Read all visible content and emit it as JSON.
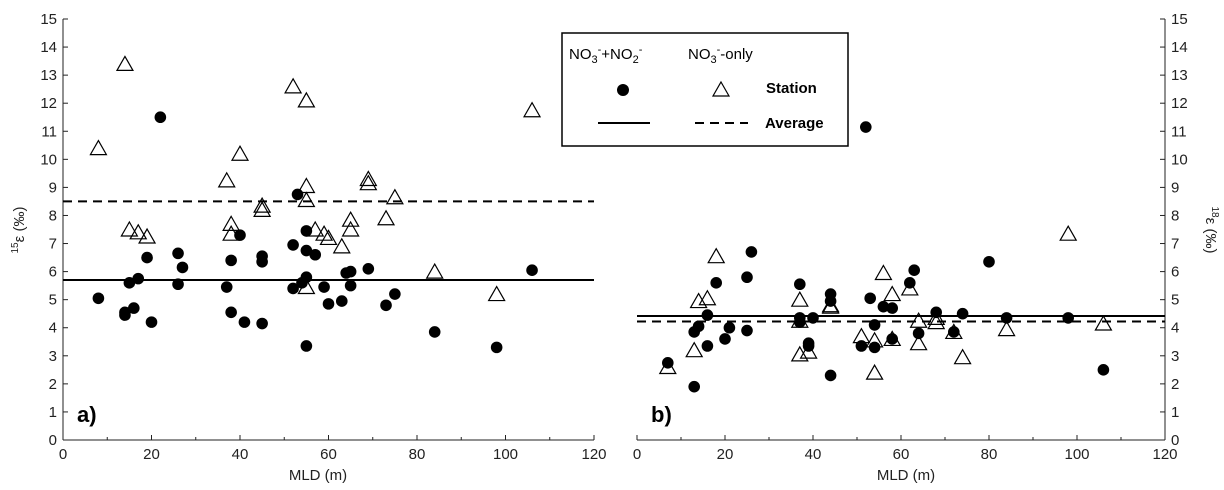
{
  "colors": {
    "ink": "#000000",
    "axis": "#222222",
    "background": "#ffffff"
  },
  "legend": {
    "title_a": "NO3-+NO2-",
    "title_b": "NO3--only",
    "station_label": "Station",
    "average_label": "Average",
    "marker_a": "filled-circle",
    "marker_b": "open-triangle",
    "line_a": "solid",
    "line_b": "dashed"
  },
  "chart_data": [
    {
      "type": "scatter",
      "panel_label": "a)",
      "xlabel": "MLD (m)",
      "ylabel": "15ε (‰)",
      "xlim": [
        0,
        120
      ],
      "ylim": [
        0,
        15
      ],
      "xticks": [
        "0",
        "20",
        "40",
        "60",
        "80",
        "100",
        "120"
      ],
      "yticks": [
        "0",
        "1",
        "2",
        "3",
        "4",
        "5",
        "6",
        "7",
        "8",
        "9",
        "10",
        "11",
        "12",
        "13",
        "14",
        "15"
      ],
      "grid": false,
      "series": [
        {
          "name": "NO3-+NO2-",
          "marker": "filled-circle",
          "points": [
            [
              8,
              5.05
            ],
            [
              14,
              4.55
            ],
            [
              14,
              4.45
            ],
            [
              15,
              5.6
            ],
            [
              16,
              4.7
            ],
            [
              17,
              5.75
            ],
            [
              19,
              6.5
            ],
            [
              20,
              4.2
            ],
            [
              22,
              11.5
            ],
            [
              26,
              6.65
            ],
            [
              26,
              5.55
            ],
            [
              27,
              6.15
            ],
            [
              37,
              5.45
            ],
            [
              38,
              6.4
            ],
            [
              38,
              4.55
            ],
            [
              40,
              7.3
            ],
            [
              41,
              4.2
            ],
            [
              45,
              6.55
            ],
            [
              45,
              6.35
            ],
            [
              45,
              4.15
            ],
            [
              52,
              6.95
            ],
            [
              52,
              5.4
            ],
            [
              53,
              8.75
            ],
            [
              54,
              5.6
            ],
            [
              55,
              7.45
            ],
            [
              55,
              6.75
            ],
            [
              55,
              5.8
            ],
            [
              55,
              3.35
            ],
            [
              57,
              6.6
            ],
            [
              59,
              5.45
            ],
            [
              60,
              4.85
            ],
            [
              63,
              4.95
            ],
            [
              64,
              5.95
            ],
            [
              65,
              6.0
            ],
            [
              65,
              5.5
            ],
            [
              69,
              6.1
            ],
            [
              73,
              4.8
            ],
            [
              75,
              5.2
            ],
            [
              84,
              3.85
            ],
            [
              98,
              3.3
            ],
            [
              106,
              6.05
            ]
          ]
        },
        {
          "name": "NO3--only",
          "marker": "open-triangle",
          "points": [
            [
              8,
              10.4
            ],
            [
              14,
              13.4
            ],
            [
              15,
              7.5
            ],
            [
              17,
              7.4
            ],
            [
              19,
              7.25
            ],
            [
              37,
              9.25
            ],
            [
              38,
              7.7
            ],
            [
              38,
              7.35
            ],
            [
              40,
              10.2
            ],
            [
              45,
              8.35
            ],
            [
              45,
              8.2
            ],
            [
              52,
              12.6
            ],
            [
              55,
              12.1
            ],
            [
              55,
              9.05
            ],
            [
              55,
              8.55
            ],
            [
              55,
              5.45
            ],
            [
              57,
              7.5
            ],
            [
              59,
              7.35
            ],
            [
              60,
              7.2
            ],
            [
              63,
              6.9
            ],
            [
              65,
              7.85
            ],
            [
              65,
              7.5
            ],
            [
              69,
              9.3
            ],
            [
              69,
              9.15
            ],
            [
              73,
              7.9
            ],
            [
              75,
              8.65
            ],
            [
              84,
              6.0
            ],
            [
              98,
              5.2
            ],
            [
              106,
              11.75
            ]
          ]
        }
      ],
      "averages": [
        {
          "name": "NO3-+NO2-",
          "value": 5.7,
          "style": "solid"
        },
        {
          "name": "NO3--only",
          "value": 8.5,
          "style": "dashed"
        }
      ]
    },
    {
      "type": "scatter",
      "panel_label": "b)",
      "xlabel": "MLD (m)",
      "ylabel": "18ε (‰)",
      "xlim": [
        0,
        120
      ],
      "ylim": [
        0,
        15
      ],
      "xticks": [
        "0",
        "20",
        "40",
        "60",
        "80",
        "100",
        "120"
      ],
      "yticks": [
        "0",
        "1",
        "2",
        "3",
        "4",
        "5",
        "6",
        "7",
        "8",
        "9",
        "10",
        "11",
        "12",
        "13",
        "14",
        "15"
      ],
      "grid": false,
      "series": [
        {
          "name": "NO3-+NO2-",
          "marker": "filled-circle",
          "points": [
            [
              7,
              2.75
            ],
            [
              13,
              1.9
            ],
            [
              13,
              3.85
            ],
            [
              14,
              4.05
            ],
            [
              16,
              3.35
            ],
            [
              16,
              4.45
            ],
            [
              18,
              5.6
            ],
            [
              20,
              3.6
            ],
            [
              21,
              4.0
            ],
            [
              25,
              3.9
            ],
            [
              25,
              5.8
            ],
            [
              26,
              6.7
            ],
            [
              37,
              5.55
            ],
            [
              37,
              4.35
            ],
            [
              37,
              4.2
            ],
            [
              39,
              3.35
            ],
            [
              39,
              3.45
            ],
            [
              40,
              4.35
            ],
            [
              44,
              5.2
            ],
            [
              44,
              4.95
            ],
            [
              44,
              2.3
            ],
            [
              51,
              3.35
            ],
            [
              53,
              5.05
            ],
            [
              54,
              4.1
            ],
            [
              54,
              3.3
            ],
            [
              56,
              4.75
            ],
            [
              58,
              4.7
            ],
            [
              58,
              3.6
            ],
            [
              62,
              5.6
            ],
            [
              63,
              6.05
            ],
            [
              64,
              3.8
            ],
            [
              68,
              4.55
            ],
            [
              72,
              3.85
            ],
            [
              74,
              4.5
            ],
            [
              80,
              6.35
            ],
            [
              84,
              4.35
            ],
            [
              98,
              4.35
            ],
            [
              106,
              2.5
            ],
            [
              52,
              11.15
            ]
          ]
        },
        {
          "name": "NO3--only",
          "marker": "open-triangle",
          "points": [
            [
              7,
              2.6
            ],
            [
              13,
              3.2
            ],
            [
              14,
              4.95
            ],
            [
              16,
              5.05
            ],
            [
              18,
              6.55
            ],
            [
              37,
              5.0
            ],
            [
              37,
              4.25
            ],
            [
              37,
              3.05
            ],
            [
              39,
              3.15
            ],
            [
              44,
              4.8
            ],
            [
              44,
              4.75
            ],
            [
              51,
              3.7
            ],
            [
              54,
              3.55
            ],
            [
              54,
              2.4
            ],
            [
              56,
              5.95
            ],
            [
              58,
              5.2
            ],
            [
              58,
              3.6
            ],
            [
              62,
              5.4
            ],
            [
              64,
              4.25
            ],
            [
              64,
              3.45
            ],
            [
              68,
              4.35
            ],
            [
              68,
              4.2
            ],
            [
              72,
              3.85
            ],
            [
              74,
              2.95
            ],
            [
              84,
              3.95
            ],
            [
              98,
              7.35
            ],
            [
              106,
              4.15
            ]
          ]
        }
      ],
      "averages": [
        {
          "name": "NO3-+NO2-",
          "value": 4.42,
          "style": "solid"
        },
        {
          "name": "NO3--only",
          "value": 4.22,
          "style": "dashed"
        }
      ]
    }
  ]
}
